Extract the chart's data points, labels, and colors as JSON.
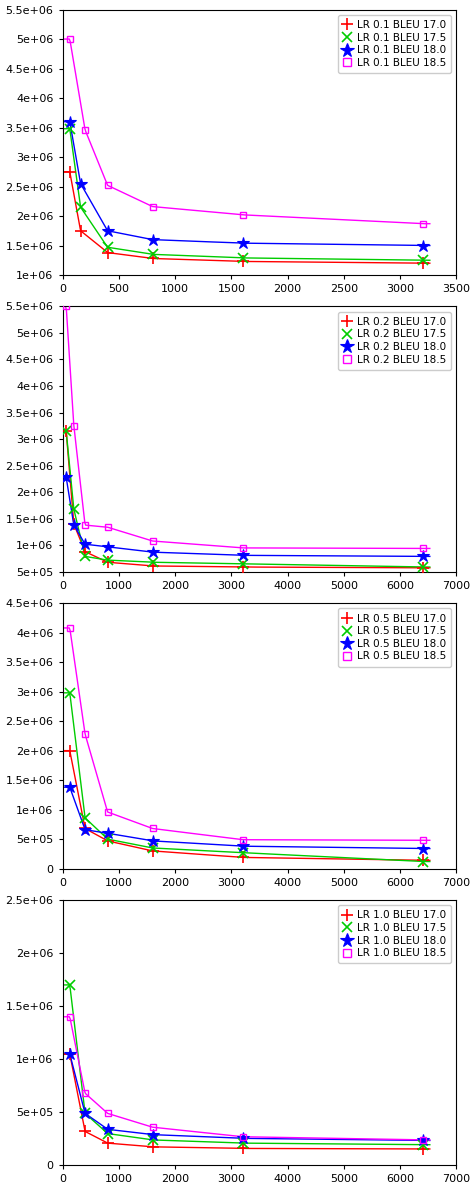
{
  "subplots": [
    {
      "lr": "0.1",
      "xlim": [
        0,
        3500
      ],
      "ylim": [
        1000000,
        5500000
      ],
      "yticks": [
        1000000,
        1500000,
        2000000,
        2500000,
        3000000,
        3500000,
        4000000,
        4500000,
        5000000,
        5500000
      ],
      "xticks": [
        0,
        500,
        1000,
        1500,
        2000,
        2500,
        3000,
        3500
      ],
      "series": [
        {
          "label": "LR 0.1 BLEU 17.0",
          "color": "#ff0000",
          "marker": "+",
          "x": [
            64,
            160,
            400,
            800,
            1600,
            3200
          ],
          "y": [
            2750000,
            1750000,
            1380000,
            1280000,
            1230000,
            1200000
          ]
        },
        {
          "label": "LR 0.1 BLEU 17.5",
          "color": "#00cc00",
          "marker": "x",
          "x": [
            64,
            160,
            400,
            800,
            1600,
            3200
          ],
          "y": [
            3480000,
            2150000,
            1470000,
            1350000,
            1290000,
            1250000
          ]
        },
        {
          "label": "LR 0.1 BLEU 18.0",
          "color": "#0000ff",
          "marker": "*",
          "x": [
            64,
            160,
            400,
            800,
            1600,
            3200
          ],
          "y": [
            3600000,
            2550000,
            1750000,
            1600000,
            1540000,
            1500000
          ]
        },
        {
          "label": "LR 0.1 BLEU 18.5",
          "color": "#ff00ff",
          "marker": "s",
          "x": [
            64,
            200,
            400,
            800,
            1600,
            3200
          ],
          "y": [
            5000000,
            3460000,
            2520000,
            2160000,
            2020000,
            1870000
          ]
        }
      ]
    },
    {
      "lr": "0.2",
      "xlim": [
        0,
        7000
      ],
      "ylim": [
        500000,
        5500000
      ],
      "yticks": [
        500000,
        1000000,
        1500000,
        2000000,
        2500000,
        3000000,
        3500000,
        4000000,
        4500000,
        5000000,
        5500000
      ],
      "xticks": [
        0,
        1000,
        2000,
        3000,
        4000,
        5000,
        6000,
        7000
      ],
      "series": [
        {
          "label": "LR 0.2 BLEU 17.0",
          "color": "#ff0000",
          "marker": "+",
          "x": [
            64,
            200,
            400,
            800,
            1600,
            3200,
            6400
          ],
          "y": [
            3150000,
            1400000,
            880000,
            680000,
            610000,
            590000,
            575000
          ]
        },
        {
          "label": "LR 0.2 BLEU 17.5",
          "color": "#00cc00",
          "marker": "x",
          "x": [
            64,
            200,
            400,
            800,
            1600,
            3200,
            6400
          ],
          "y": [
            3150000,
            1680000,
            790000,
            720000,
            680000,
            650000,
            590000
          ]
        },
        {
          "label": "LR 0.2 BLEU 18.0",
          "color": "#0000ff",
          "marker": "*",
          "x": [
            64,
            200,
            400,
            800,
            1600,
            3200,
            6400
          ],
          "y": [
            2280000,
            1380000,
            1020000,
            970000,
            870000,
            810000,
            790000
          ]
        },
        {
          "label": "LR 0.2 BLEU 18.5",
          "color": "#ff00ff",
          "marker": "s",
          "x": [
            64,
            200,
            400,
            800,
            1600,
            3200,
            6400
          ],
          "y": [
            5500000,
            3250000,
            1380000,
            1340000,
            1080000,
            950000,
            940000
          ]
        }
      ]
    },
    {
      "lr": "0.5",
      "xlim": [
        0,
        7000
      ],
      "ylim": [
        0,
        4500000
      ],
      "yticks": [
        0,
        500000,
        1000000,
        1500000,
        2000000,
        2500000,
        3000000,
        3500000,
        4000000,
        4500000
      ],
      "xticks": [
        0,
        1000,
        2000,
        3000,
        4000,
        5000,
        6000,
        7000
      ],
      "series": [
        {
          "label": "LR 0.5 BLEU 17.0",
          "color": "#ff0000",
          "marker": "+",
          "x": [
            128,
            400,
            800,
            1600,
            3200,
            6400
          ],
          "y": [
            2000000,
            680000,
            470000,
            300000,
            190000,
            140000
          ]
        },
        {
          "label": "LR 0.5 BLEU 17.5",
          "color": "#00cc00",
          "marker": "x",
          "x": [
            128,
            400,
            800,
            1600,
            3200,
            6400
          ],
          "y": [
            2980000,
            860000,
            500000,
            350000,
            270000,
            120000
          ]
        },
        {
          "label": "LR 0.5 BLEU 18.0",
          "color": "#0000ff",
          "marker": "*",
          "x": [
            128,
            400,
            800,
            1600,
            3200,
            6400
          ],
          "y": [
            1380000,
            660000,
            600000,
            470000,
            380000,
            340000
          ]
        },
        {
          "label": "LR 0.5 BLEU 18.5",
          "color": "#ff00ff",
          "marker": "s",
          "x": [
            128,
            400,
            800,
            1600,
            3200,
            6400
          ],
          "y": [
            4080000,
            2280000,
            960000,
            680000,
            490000,
            480000
          ]
        }
      ]
    },
    {
      "lr": "1.0",
      "xlim": [
        0,
        7000
      ],
      "ylim": [
        0,
        2500000
      ],
      "yticks": [
        0,
        500000,
        1000000,
        1500000,
        2000000,
        2500000
      ],
      "xticks": [
        0,
        1000,
        2000,
        3000,
        4000,
        5000,
        6000,
        7000
      ],
      "series": [
        {
          "label": "LR 1.0 BLEU 17.0",
          "color": "#ff0000",
          "marker": "+",
          "x": [
            128,
            400,
            800,
            1600,
            3200,
            6400
          ],
          "y": [
            1050000,
            320000,
            210000,
            175000,
            160000,
            155000
          ]
        },
        {
          "label": "LR 1.0 BLEU 17.5",
          "color": "#00cc00",
          "marker": "x",
          "x": [
            128,
            400,
            800,
            1600,
            3200,
            6400
          ],
          "y": [
            1700000,
            490000,
            300000,
            240000,
            210000,
            195000
          ]
        },
        {
          "label": "LR 1.0 BLEU 18.0",
          "color": "#0000ff",
          "marker": "*",
          "x": [
            128,
            400,
            800,
            1600,
            3200,
            6400
          ],
          "y": [
            1050000,
            490000,
            340000,
            290000,
            255000,
            235000
          ]
        },
        {
          "label": "LR 1.0 BLEU 18.5",
          "color": "#ff00ff",
          "marker": "s",
          "x": [
            128,
            400,
            800,
            1600,
            3200,
            6400
          ],
          "y": [
            1400000,
            680000,
            490000,
            360000,
            270000,
            240000
          ]
        }
      ]
    }
  ]
}
